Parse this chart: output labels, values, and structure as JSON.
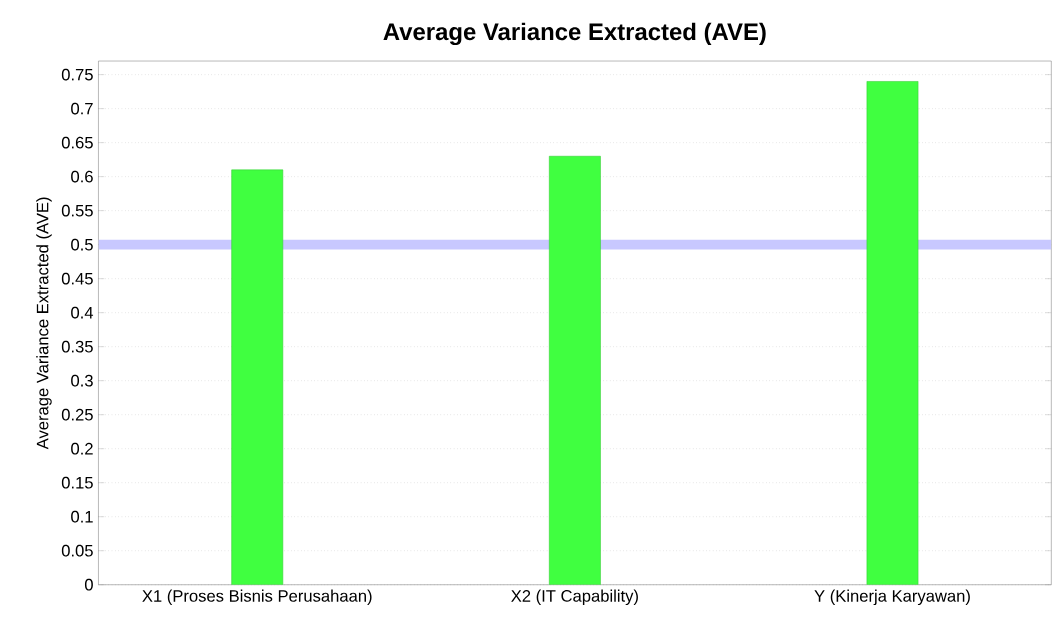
{
  "chart_data": {
    "type": "bar",
    "title": "Average Variance Extracted (AVE)",
    "ylabel": "Average Variance Extracted (AVE)",
    "categories": [
      "X1 (Proses Bisnis Perusahaan)",
      "X2 (IT Capability)",
      "Y (Kinerja Karyawan)"
    ],
    "values": [
      0.61,
      0.63,
      0.74
    ],
    "color": "#40ff40",
    "ylim": [
      0,
      0.77
    ],
    "yticks": [
      0,
      0.05,
      0.1,
      0.15,
      0.2,
      0.25,
      0.3,
      0.35,
      0.4,
      0.45,
      0.5,
      0.55,
      0.6,
      0.65,
      0.7,
      0.75
    ],
    "grid": "y",
    "ref_lines": [
      {
        "axis": "y",
        "value": 0.5,
        "color": "#c8c8ff"
      }
    ]
  }
}
